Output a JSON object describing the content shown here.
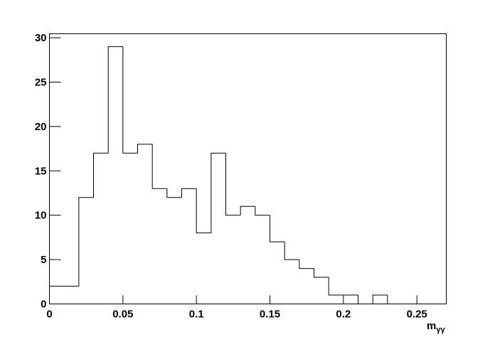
{
  "chart_data": {
    "type": "histogram",
    "bins": [
      0,
      0.01,
      0.02,
      0.03,
      0.04,
      0.05,
      0.06,
      0.07,
      0.08,
      0.09,
      0.1,
      0.11,
      0.12,
      0.13,
      0.14,
      0.15,
      0.16,
      0.17,
      0.18,
      0.19,
      0.2,
      0.21,
      0.22,
      0.23,
      0.24,
      0.25,
      0.26,
      0.27
    ],
    "values": [
      2,
      2,
      12,
      17,
      29,
      17,
      18,
      13,
      12,
      13,
      8,
      17,
      10,
      11,
      10,
      7,
      5,
      4,
      3,
      1,
      1,
      0,
      1,
      0,
      0,
      0,
      0
    ],
    "color": "#000000",
    "xlim": [
      0,
      0.27
    ],
    "xticks": [
      0,
      0.05,
      0.1,
      0.15,
      0.2,
      0.25
    ],
    "ylim": [
      0,
      30.45
    ],
    "yticks": [
      0,
      5,
      10,
      15,
      20,
      25,
      30
    ],
    "xlabel": "m",
    "xlabel_sub": "γγ"
  }
}
